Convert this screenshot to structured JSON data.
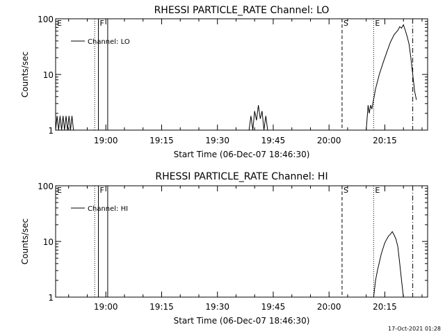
{
  "footer": {
    "timestamp": "17-Oct-2021 01:28"
  },
  "chart_data": [
    {
      "type": "line",
      "title": "RHESSI PARTICLE_RATE Channel: LO",
      "xlabel": "Start Time (06-Dec-07 18:46:30)",
      "ylabel": "Counts/sec",
      "y_scale": "log",
      "ylim": [
        1,
        100
      ],
      "y_ticks": [
        "1",
        "10",
        "100"
      ],
      "x_unit": "minutes after 18:46:30",
      "xlim": [
        0,
        100
      ],
      "x_ticks": [
        {
          "label": "19:00",
          "x": 13.5
        },
        {
          "label": "19:15",
          "x": 28.5
        },
        {
          "label": "19:30",
          "x": 43.5
        },
        {
          "label": "19:45",
          "x": 58.5
        },
        {
          "label": "20:00",
          "x": 73.5
        },
        {
          "label": "20:15",
          "x": 88.5
        }
      ],
      "legend": {
        "entries": [
          "Channel: LO"
        ],
        "position": "top-left"
      },
      "markers": [
        {
          "label": "E",
          "x": 0,
          "style": "none"
        },
        {
          "label": "",
          "x": 10.5,
          "style": "dotted"
        },
        {
          "label": "F",
          "x": 11.5,
          "style": "solid"
        },
        {
          "label": "",
          "x": 14.0,
          "style": "solid"
        },
        {
          "label": "S",
          "x": 77.0,
          "style": "dashed"
        },
        {
          "label": "E",
          "x": 85.5,
          "style": "dotted"
        },
        {
          "label": "",
          "x": 96.0,
          "style": "dashdot"
        }
      ],
      "series": [
        {
          "name": "Channel: LO",
          "segments": [
            [
              [
                0.0,
                1
              ],
              [
                0.4,
                1.8
              ],
              [
                0.8,
                1
              ],
              [
                1.2,
                1.8
              ],
              [
                1.6,
                1
              ],
              [
                2.0,
                1.8
              ],
              [
                2.4,
                1
              ],
              [
                2.8,
                1.8
              ],
              [
                3.2,
                1
              ],
              [
                3.6,
                1.8
              ],
              [
                4.0,
                1
              ],
              [
                4.4,
                1.8
              ],
              [
                4.8,
                1
              ]
            ],
            [
              [
                52.0,
                1
              ],
              [
                52.5,
                1.8
              ],
              [
                53.0,
                1
              ],
              [
                53.5,
                2.2
              ],
              [
                54.0,
                1.5
              ],
              [
                54.5,
                2.8
              ],
              [
                55.0,
                1.6
              ],
              [
                55.5,
                2.2
              ],
              [
                56.0,
                1
              ],
              [
                56.5,
                1.8
              ],
              [
                57.0,
                1
              ]
            ],
            [
              [
                83.5,
                1
              ],
              [
                84.0,
                2.8
              ],
              [
                84.3,
                2.0
              ],
              [
                84.7,
                2.8
              ],
              [
                85.0,
                2.4
              ],
              [
                85.5,
                3.6
              ],
              [
                86.0,
                5.5
              ],
              [
                87.0,
                10
              ],
              [
                88.0,
                16
              ],
              [
                89.0,
                25
              ],
              [
                90.0,
                38
              ],
              [
                91.0,
                52
              ],
              [
                92.0,
                62
              ],
              [
                92.5,
                72
              ],
              [
                93.0,
                68
              ],
              [
                93.5,
                78
              ],
              [
                94.0,
                62
              ],
              [
                94.5,
                48
              ],
              [
                95.0,
                35
              ],
              [
                95.5,
                20
              ],
              [
                96.0,
                10
              ],
              [
                96.5,
                5
              ],
              [
                97.0,
                3.5
              ]
            ]
          ]
        }
      ]
    },
    {
      "type": "line",
      "title": "RHESSI PARTICLE_RATE Channel: HI",
      "xlabel": "Start Time (06-Dec-07 18:46:30)",
      "ylabel": "Counts/sec",
      "y_scale": "log",
      "ylim": [
        1,
        100
      ],
      "y_ticks": [
        "1",
        "10",
        "100"
      ],
      "x_unit": "minutes after 18:46:30",
      "xlim": [
        0,
        100
      ],
      "x_ticks": [
        {
          "label": "19:00",
          "x": 13.5
        },
        {
          "label": "19:15",
          "x": 28.5
        },
        {
          "label": "19:30",
          "x": 43.5
        },
        {
          "label": "19:45",
          "x": 58.5
        },
        {
          "label": "20:00",
          "x": 73.5
        },
        {
          "label": "20:15",
          "x": 88.5
        }
      ],
      "legend": {
        "entries": [
          "Channel: HI"
        ],
        "position": "top-left"
      },
      "markers": [
        {
          "label": "E",
          "x": 0,
          "style": "none"
        },
        {
          "label": "",
          "x": 10.5,
          "style": "dotted"
        },
        {
          "label": "F",
          "x": 11.5,
          "style": "solid"
        },
        {
          "label": "",
          "x": 14.0,
          "style": "solid"
        },
        {
          "label": "S",
          "x": 77.0,
          "style": "dashed"
        },
        {
          "label": "E",
          "x": 85.5,
          "style": "dotted"
        },
        {
          "label": "",
          "x": 96.0,
          "style": "dashdot"
        }
      ],
      "series": [
        {
          "name": "Channel: HI",
          "segments": [
            [
              [
                85.5,
                1
              ],
              [
                86.0,
                2.0
              ],
              [
                86.5,
                3.0
              ],
              [
                87.0,
                4.2
              ],
              [
                87.5,
                5.8
              ],
              [
                88.0,
                7.5
              ],
              [
                88.5,
                9.5
              ],
              [
                89.0,
                11
              ],
              [
                89.5,
                12.5
              ],
              [
                90.0,
                13.5
              ],
              [
                90.5,
                15
              ],
              [
                91.0,
                13
              ],
              [
                91.5,
                11
              ],
              [
                92.0,
                8
              ],
              [
                92.5,
                4
              ],
              [
                93.0,
                2
              ],
              [
                93.5,
                1
              ]
            ]
          ]
        }
      ]
    }
  ]
}
